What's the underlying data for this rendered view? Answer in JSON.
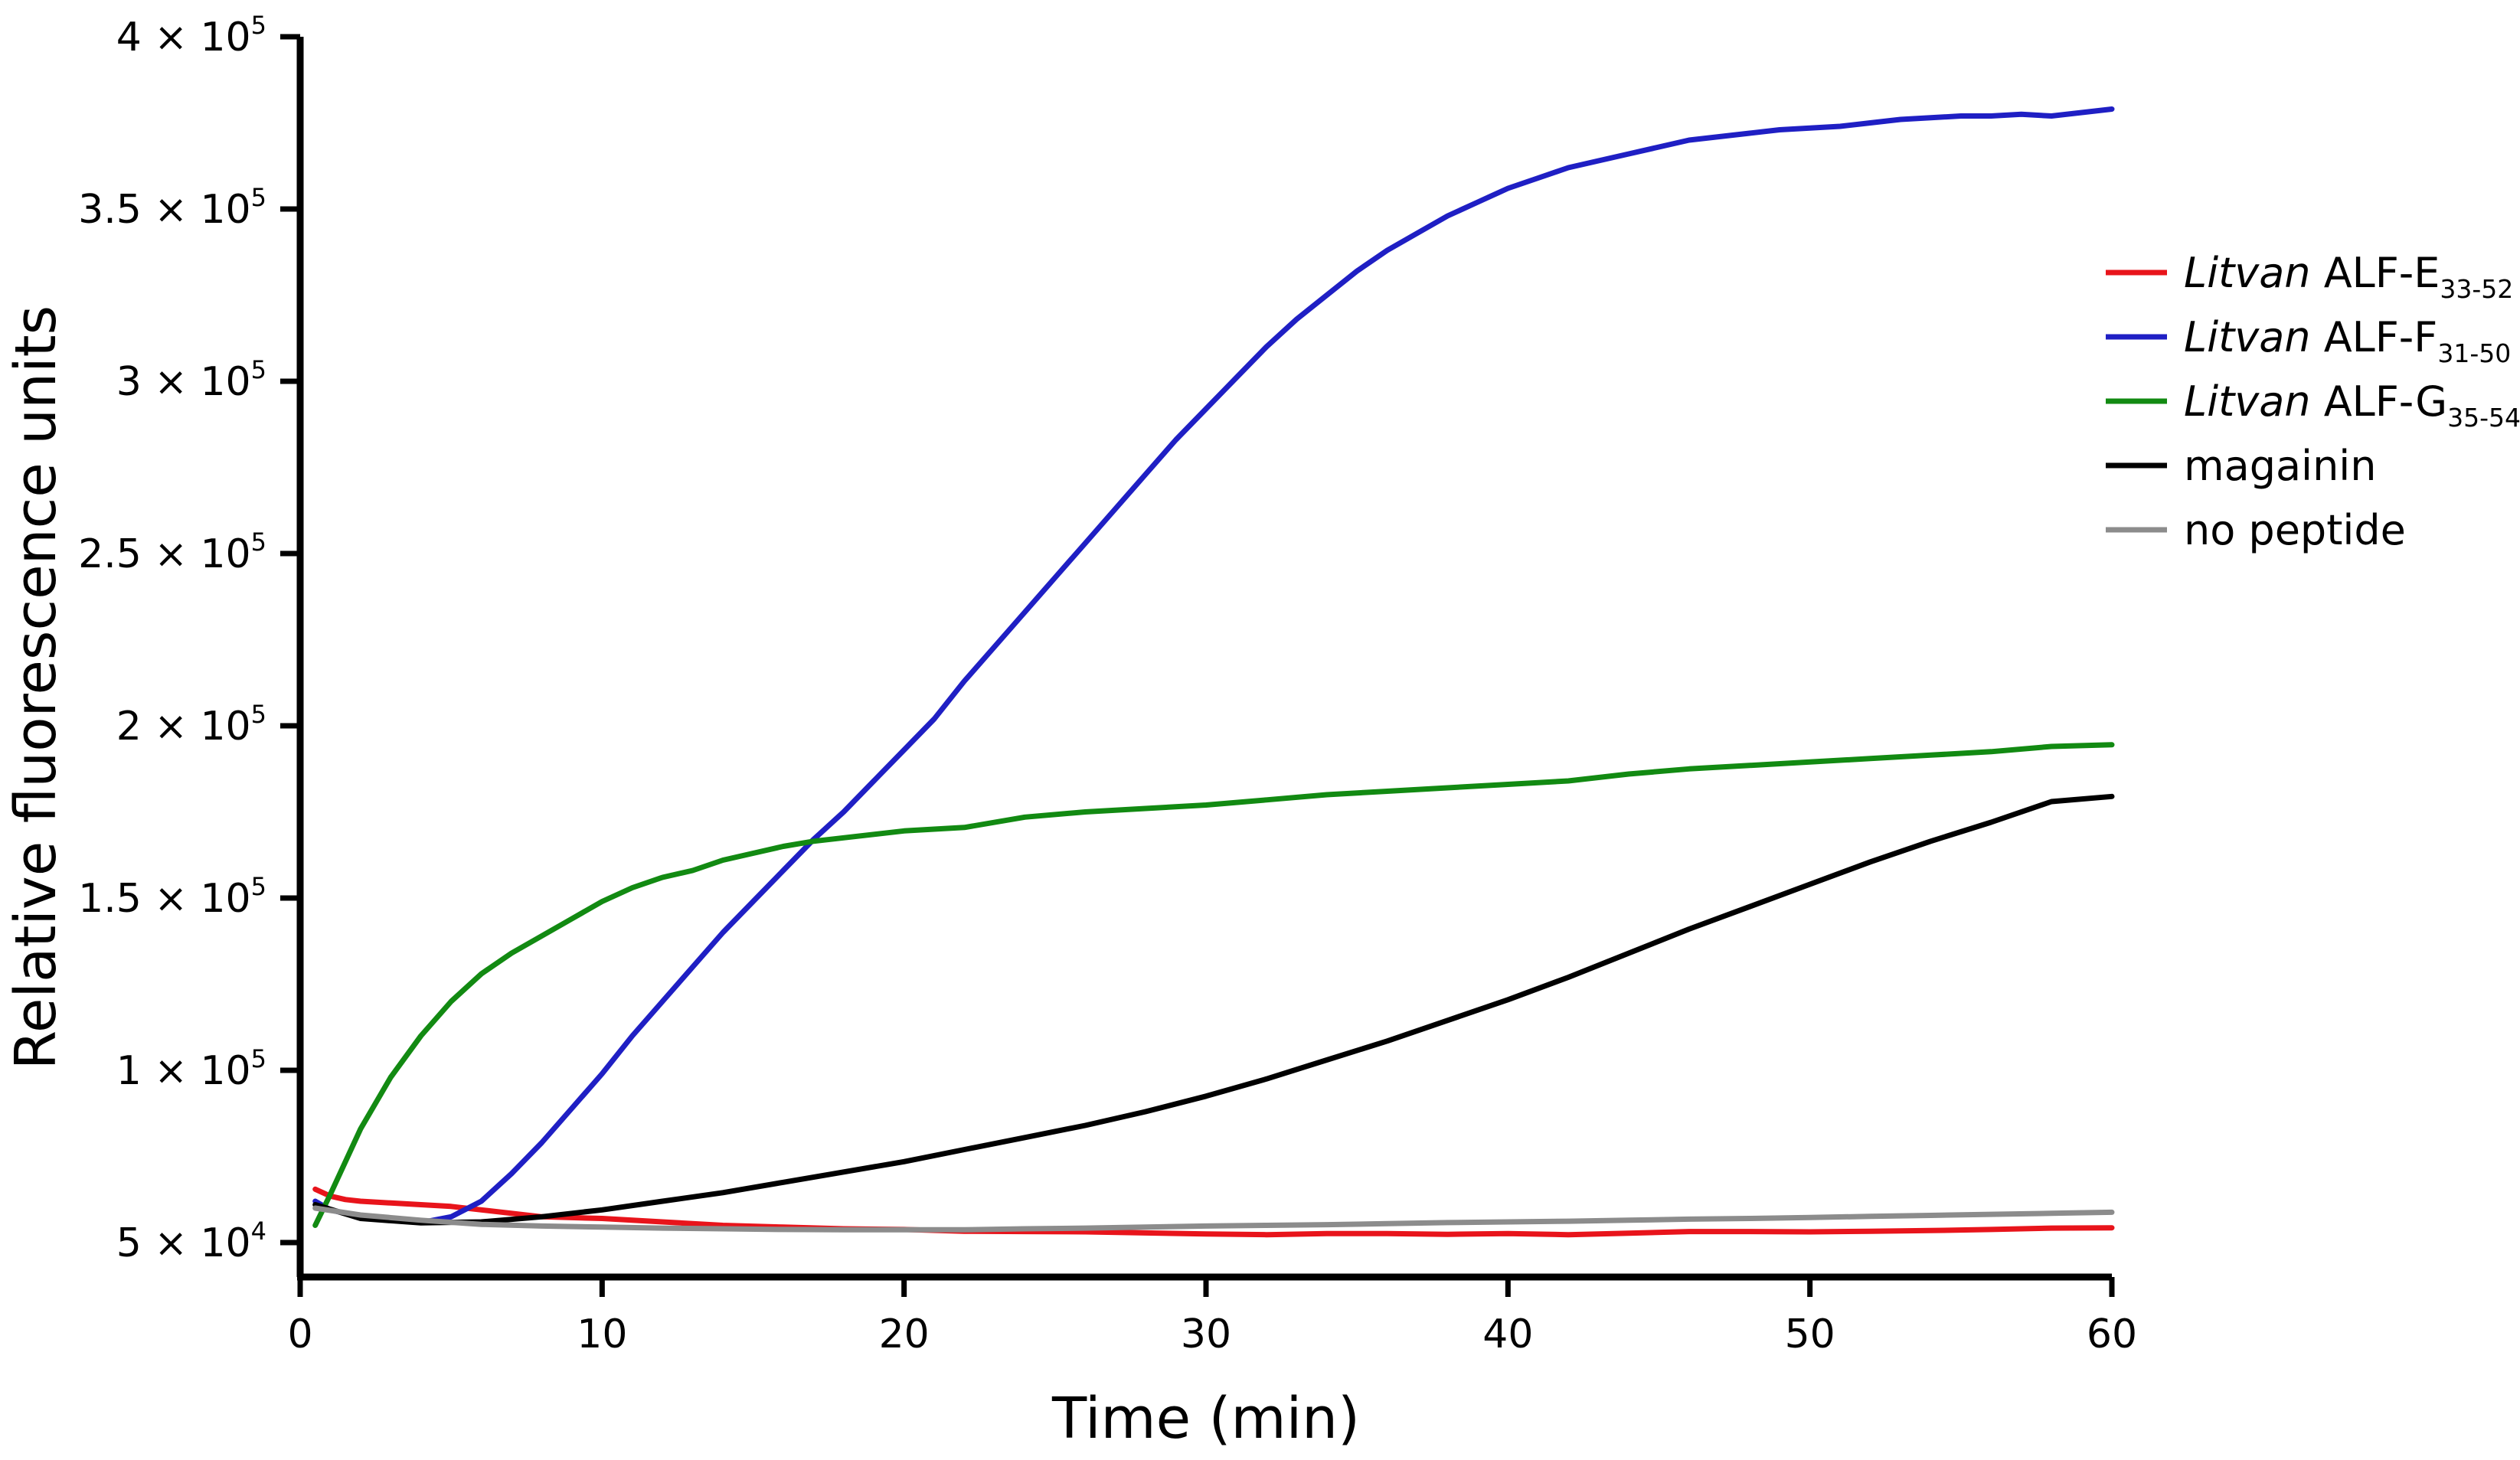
{
  "chart_data": {
    "type": "line",
    "title": "",
    "xlabel": "Time (min)",
    "ylabel": "Relative fluorescence units",
    "xlim": [
      0,
      60
    ],
    "ylim": [
      40000,
      400000
    ],
    "grid": false,
    "legend_position": "right",
    "x_ticks": [
      {
        "value": 0,
        "label": "0"
      },
      {
        "value": 10,
        "label": "10"
      },
      {
        "value": 20,
        "label": "20"
      },
      {
        "value": 30,
        "label": "30"
      },
      {
        "value": 40,
        "label": "40"
      },
      {
        "value": 50,
        "label": "50"
      },
      {
        "value": 60,
        "label": "60"
      }
    ],
    "y_ticks": [
      {
        "value": 50000,
        "mantissa": "5 × 10",
        "exp": "4"
      },
      {
        "value": 100000,
        "mantissa": "1 × 10",
        "exp": "5"
      },
      {
        "value": 150000,
        "mantissa": "1.5 × 10",
        "exp": "5"
      },
      {
        "value": 200000,
        "mantissa": "2 × 10",
        "exp": "5"
      },
      {
        "value": 250000,
        "mantissa": "2.5 × 10",
        "exp": "5"
      },
      {
        "value": 300000,
        "mantissa": "3 × 10",
        "exp": "5"
      },
      {
        "value": 350000,
        "mantissa": "3.5 × 10",
        "exp": "5"
      },
      {
        "value": 400000,
        "mantissa": "4 × 10",
        "exp": "5"
      }
    ],
    "series": [
      {
        "name": "Litvan ALF-E33-52",
        "label_italic": "Litvan",
        "label_main": " ALF-E",
        "label_sub": "33-52",
        "color": "#e8141b",
        "x": [
          0.5,
          1,
          1.5,
          2,
          3,
          4,
          5,
          6,
          8,
          10,
          12,
          14,
          16,
          18,
          20,
          22,
          24,
          26,
          28,
          30,
          32,
          34,
          36,
          38,
          40,
          42,
          44,
          46,
          48,
          50,
          52,
          54,
          56,
          58,
          60
        ],
        "y": [
          65500,
          63500,
          62500,
          62000,
          61500,
          61000,
          60500,
          59500,
          57500,
          57000,
          56000,
          55000,
          54500,
          54000,
          53800,
          53300,
          53200,
          53100,
          52800,
          52500,
          52300,
          52600,
          52600,
          52400,
          52600,
          52300,
          52700,
          53200,
          53200,
          53100,
          53300,
          53500,
          53800,
          54200,
          54300
        ]
      },
      {
        "name": "Litvan ALF-F31-50",
        "label_italic": "Litvan",
        "label_main": " ALF-F",
        "label_sub": "31-50",
        "color": "#1f1fc4",
        "x": [
          0.5,
          1,
          2,
          3,
          4,
          5,
          6,
          7,
          8,
          9,
          10,
          11,
          12,
          13,
          14,
          15,
          16,
          17,
          18,
          19,
          20,
          21,
          22,
          23,
          24,
          25,
          26,
          27,
          28,
          29,
          30,
          31,
          32,
          33,
          34,
          35,
          36,
          37,
          38,
          39,
          40,
          41,
          42,
          43,
          44,
          45,
          46,
          47,
          48,
          49,
          50,
          51,
          52,
          53,
          54,
          55,
          56,
          57,
          58,
          59,
          60
        ],
        "y": [
          62000,
          59500,
          57500,
          56500,
          55800,
          57500,
          62000,
          70000,
          79000,
          89000,
          99000,
          110000,
          120000,
          130000,
          140000,
          149000,
          158000,
          167000,
          175000,
          184000,
          193000,
          202000,
          213000,
          223000,
          233000,
          243000,
          253000,
          263000,
          273000,
          283000,
          292000,
          301000,
          310000,
          318000,
          325000,
          332000,
          338000,
          343000,
          348000,
          352000,
          356000,
          359000,
          362000,
          364000,
          366000,
          368000,
          370000,
          371000,
          372000,
          373000,
          373500,
          374000,
          375000,
          376000,
          376500,
          377000,
          377000,
          377500,
          377000,
          378000,
          379000
        ]
      },
      {
        "name": "Litvan ALF-G35-54",
        "label_italic": "Litvan",
        "label_main": " ALF-G",
        "label_sub": "35-54",
        "color": "#128a12",
        "x": [
          0.5,
          1,
          2,
          3,
          4,
          5,
          6,
          7,
          8,
          9,
          10,
          11,
          12,
          13,
          14,
          15,
          16,
          17,
          18,
          20,
          22,
          24,
          26,
          28,
          30,
          32,
          34,
          36,
          38,
          40,
          42,
          44,
          46,
          48,
          50,
          52,
          54,
          56,
          58,
          60
        ],
        "y": [
          55000,
          64000,
          83000,
          98000,
          110000,
          120000,
          128000,
          134000,
          139000,
          144000,
          149000,
          153000,
          156000,
          158000,
          161000,
          163000,
          165000,
          166500,
          167500,
          169500,
          170500,
          173500,
          175000,
          176000,
          177000,
          178500,
          180000,
          181000,
          182000,
          183000,
          184000,
          186000,
          187500,
          188500,
          189500,
          190500,
          191500,
          192500,
          194000,
          194500
        ]
      },
      {
        "name": "magainin",
        "label_italic": "",
        "label_main": "magainin",
        "label_sub": "",
        "color": "#000000",
        "x": [
          0.5,
          2,
          4,
          6,
          8,
          10,
          12,
          14,
          16,
          18,
          20,
          22,
          24,
          26,
          28,
          30,
          32,
          34,
          36,
          38,
          40,
          42,
          44,
          46,
          48,
          50,
          52,
          54,
          56,
          58,
          60
        ],
        "y": [
          61000,
          57000,
          55700,
          56000,
          57500,
          59500,
          62000,
          64500,
          67500,
          70500,
          73500,
          77000,
          80500,
          84000,
          88000,
          92500,
          97500,
          103000,
          108500,
          114500,
          120500,
          127000,
          134000,
          141000,
          147500,
          154000,
          160500,
          166500,
          172000,
          178000,
          179500
        ]
      },
      {
        "name": "no peptide",
        "label_italic": "",
        "label_main": "no peptide",
        "label_sub": "",
        "color": "#8c8c8c",
        "x": [
          0.5,
          2,
          4,
          6,
          8,
          10,
          12,
          14,
          16,
          18,
          20,
          22,
          24,
          26,
          28,
          30,
          32,
          34,
          36,
          38,
          40,
          42,
          44,
          46,
          48,
          50,
          52,
          54,
          56,
          58,
          60
        ],
        "y": [
          60000,
          58000,
          56500,
          55300,
          54800,
          54500,
          54200,
          54000,
          53800,
          53700,
          53700,
          53700,
          54000,
          54200,
          54500,
          54800,
          55000,
          55200,
          55500,
          55800,
          56000,
          56200,
          56500,
          56800,
          57000,
          57300,
          57600,
          57900,
          58200,
          58500,
          58800
        ]
      }
    ]
  }
}
